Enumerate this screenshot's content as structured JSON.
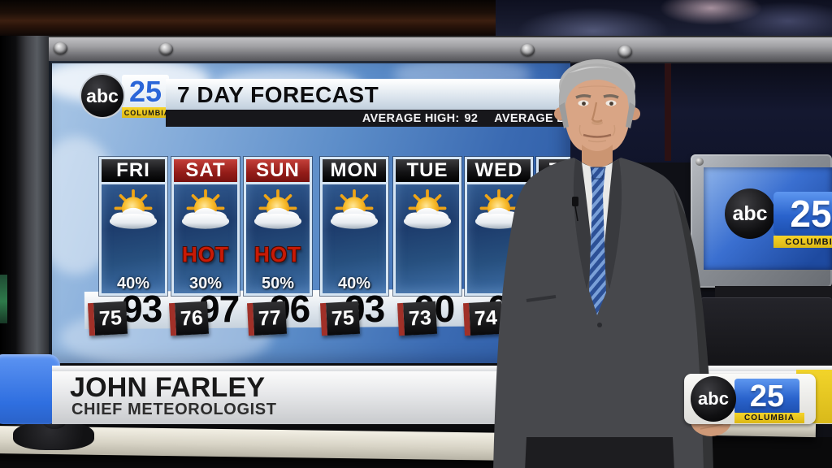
{
  "station": {
    "abc": "abc",
    "number": "25",
    "city": "COLUMBIA"
  },
  "screen": {
    "title": "7 DAY FORECAST",
    "avg_high_label": "AVERAGE HIGH:",
    "avg_high_value": "92",
    "avg_low_label": "AVERAGE LO",
    "days": [
      {
        "name": "FRI",
        "hot": "",
        "precip": "40%",
        "high": "93",
        "low": "75"
      },
      {
        "name": "SAT",
        "hot": "HOT",
        "precip": "30%",
        "high": "97",
        "low": "76"
      },
      {
        "name": "SUN",
        "hot": "HOT",
        "precip": "50%",
        "high": "96",
        "low": "77"
      },
      {
        "name": "MON",
        "hot": "",
        "precip": "40%",
        "high": "93",
        "low": "75"
      },
      {
        "name": "TUE",
        "hot": "",
        "precip": "",
        "high": "90",
        "low": "73"
      },
      {
        "name": "WED",
        "hot": "",
        "precip": "",
        "high": "92",
        "low": "74"
      },
      {
        "name": "THU",
        "hot": "",
        "precip": "",
        "high": "",
        "low": ""
      }
    ]
  },
  "lower_third": {
    "name": "JOHN FARLEY",
    "title": "CHIEF METEOROLOGIST"
  },
  "colors": {
    "station_blue": "#2a66d8",
    "station_yellow": "#f0cb1c",
    "hot_red": "#c81a06",
    "weekend_header_red": "#931c18",
    "sky_blue": "#5b8cc8"
  }
}
